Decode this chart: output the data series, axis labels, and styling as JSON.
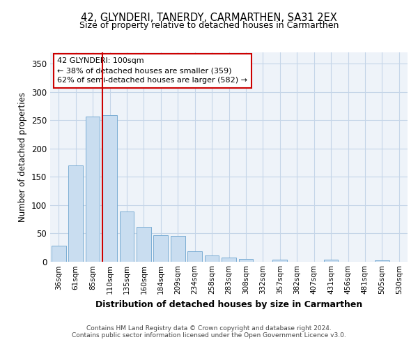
{
  "title_line1": "42, GLYNDERI, TANERDY, CARMARTHEN, SA31 2EX",
  "title_line2": "Size of property relative to detached houses in Carmarthen",
  "xlabel": "Distribution of detached houses by size in Carmarthen",
  "ylabel": "Number of detached properties",
  "categories": [
    "36sqm",
    "61sqm",
    "85sqm",
    "110sqm",
    "135sqm",
    "160sqm",
    "184sqm",
    "209sqm",
    "234sqm",
    "258sqm",
    "283sqm",
    "308sqm",
    "332sqm",
    "357sqm",
    "382sqm",
    "407sqm",
    "431sqm",
    "456sqm",
    "481sqm",
    "505sqm",
    "530sqm"
  ],
  "values": [
    28,
    170,
    257,
    259,
    89,
    62,
    47,
    46,
    19,
    11,
    7,
    5,
    0,
    4,
    0,
    0,
    4,
    0,
    0,
    2,
    0
  ],
  "bar_color": "#c9ddf0",
  "bar_edge_color": "#7aadd4",
  "grid_color": "#c5d5e8",
  "bg_color": "#ffffff",
  "plot_bg_color": "#eef3f9",
  "vline_x_index": 3,
  "vline_color": "#cc0000",
  "annotation_text": "42 GLYNDERI: 100sqm\n← 38% of detached houses are smaller (359)\n62% of semi-detached houses are larger (582) →",
  "annotation_box_edgecolor": "#cc0000",
  "footer_text": "Contains HM Land Registry data © Crown copyright and database right 2024.\nContains public sector information licensed under the Open Government Licence v3.0.",
  "ylim": [
    0,
    370
  ],
  "yticks": [
    0,
    50,
    100,
    150,
    200,
    250,
    300,
    350
  ]
}
